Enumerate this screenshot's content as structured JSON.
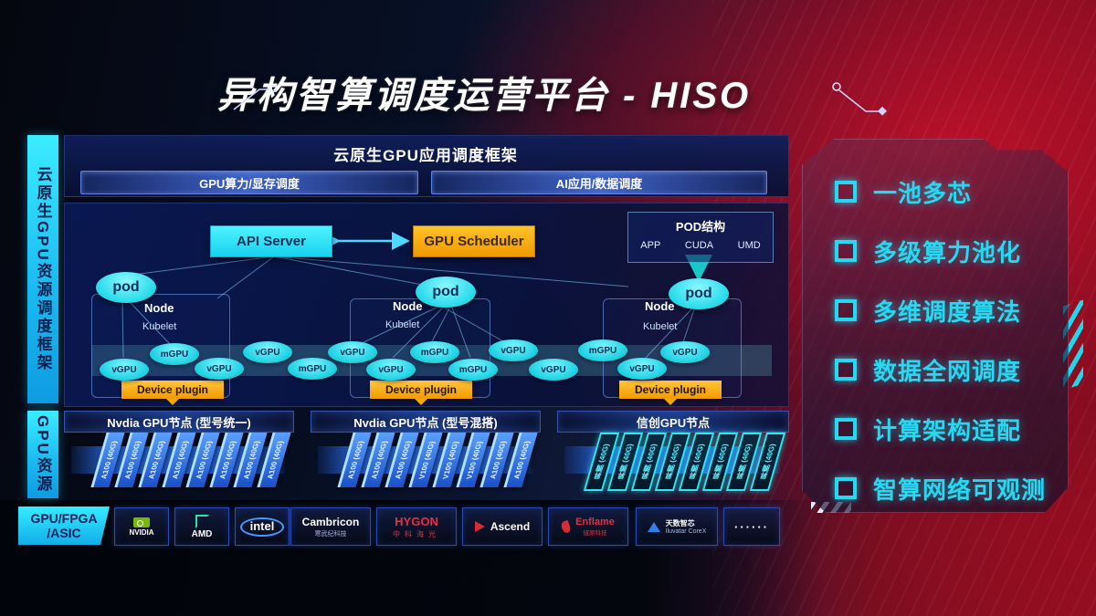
{
  "colors": {
    "accent_cyan": "#25d9f2",
    "accent_orange": "#f5a800",
    "card_blue": "#2a6ae0",
    "background_red": "#8e1222",
    "background_navy": "#071026"
  },
  "header": {
    "title": "异构智算调度运营平台 - HISO"
  },
  "left_rails": {
    "rail_top": "云原生GPU资源调度框架",
    "rail_mid": "GPU资源",
    "rail_bottom_line1": "GPU/FPGA",
    "rail_bottom_line2": "/ASIC"
  },
  "framework": {
    "title": "云原生GPU应用调度框架",
    "bars": [
      "GPU算力/显存调度",
      "AI应用/数据调度"
    ]
  },
  "control_plane": {
    "api_server": "API Server",
    "gpu_scheduler": "GPU Scheduler",
    "pod_box": {
      "title": "POD结构",
      "items": [
        "APP",
        "CUDA",
        "UMD"
      ]
    }
  },
  "nodes": [
    {
      "pod": "pod",
      "name": "Node",
      "agent": "Kubelet",
      "plugin": "Device plugin"
    },
    {
      "pod": "pod",
      "name": "Node",
      "agent": "Kubelet",
      "plugin": "Device plugin"
    },
    {
      "pod": "pod",
      "name": "Node",
      "agent": "Kubelet",
      "plugin": "Device plugin"
    }
  ],
  "gpu_pool": {
    "labels": [
      "vGPU",
      "mGPU",
      "vGPU",
      "vGPU",
      "mGPU",
      "vGPU",
      "vGPU",
      "mGPU",
      "mGPU",
      "vGPU",
      "vGPU",
      "mGPU",
      "vGPU",
      "vGPU"
    ]
  },
  "gpu_groups": [
    {
      "header": "Nvdia GPU节点 (型号统一)",
      "variant": "blue",
      "cards": [
        "A100 (40G)",
        "A100 (40G)",
        "A100 (40G)",
        "A100 (40G)",
        "A100 (40G)",
        "A100 (40G)",
        "A100 (40G)",
        "A100 (40G)"
      ]
    },
    {
      "header": "Nvdia GPU节点 (型号混搭)",
      "variant": "blue",
      "cards": [
        "A100 (40G)",
        "A100 (40G)",
        "A100 (40G)",
        "V100 (40G)",
        "V100 (40G)",
        "V100 (40G)",
        "A100 (40G)",
        "A100 (40G)"
      ]
    },
    {
      "header": "信创GPU节点",
      "variant": "cyan",
      "cards": [
        "昇腾 (40G)",
        "昇腾 (40G)",
        "昇腾 (40G)",
        "昇腾 (40G)",
        "昇腾 (40G)",
        "昇腾 (40G)",
        "昇腾 (40G)",
        "昇腾 (40G)"
      ]
    }
  ],
  "vendors": [
    {
      "name": "NVIDIA",
      "icon": "nvidia"
    },
    {
      "name": "AMD",
      "icon": "amd"
    },
    {
      "name": "intel",
      "icon": "intel"
    },
    {
      "name": "Cambricon",
      "sub": "寒武纪科技",
      "icon": "cambricon"
    },
    {
      "name": "HYGON",
      "sub": "中科海光",
      "icon": "hygon"
    },
    {
      "name": "Ascend",
      "icon": "ascend"
    },
    {
      "name": "Enflame",
      "sub": "燧原科技",
      "icon": "enflame"
    },
    {
      "name": "天数智芯",
      "sub": "Iluvatar CoreX",
      "icon": "iluvatar"
    },
    {
      "name": "······",
      "icon": "dots"
    }
  ],
  "features": [
    "一池多芯",
    "多级算力池化",
    "多维调度算法",
    "数据全网调度",
    "计算架构适配",
    "智算网络可观测"
  ]
}
